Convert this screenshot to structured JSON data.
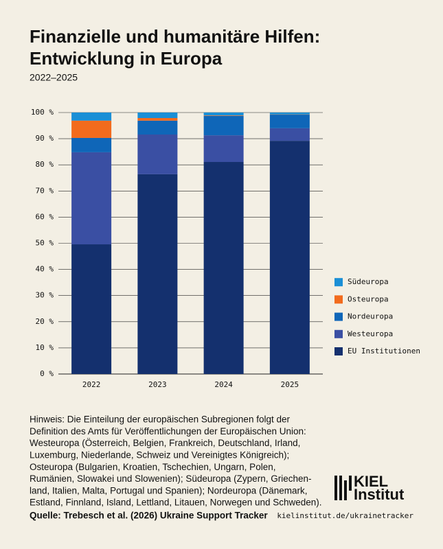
{
  "chart_data": {
    "type": "stacked_bar",
    "title": [
      "Finanzielle und humanitäre Hilfen:",
      "Entwicklung in Europa"
    ],
    "subtitle": "2022–2025",
    "categories": [
      "2022",
      "2023",
      "2024",
      "2025"
    ],
    "series": [
      {
        "name": "EU Institutionen",
        "color": "#14306e",
        "values": [
          49.6,
          76.4,
          81.1,
          89.2
        ]
      },
      {
        "name": "Westeuropa",
        "color": "#3a4fa3",
        "values": [
          35.2,
          15.2,
          10.2,
          4.8
        ]
      },
      {
        "name": "Nordeuropa",
        "color": "#0f66b8",
        "values": [
          5.5,
          5.3,
          7.4,
          5.2
        ]
      },
      {
        "name": "Osteuropa",
        "color": "#f26b1d",
        "values": [
          6.6,
          1.0,
          0.2,
          0.1
        ]
      },
      {
        "name": "Südeuropa",
        "color": "#1a8fd6",
        "values": [
          3.1,
          2.1,
          1.1,
          0.7
        ]
      }
    ],
    "ylim": [
      0,
      100
    ],
    "yticks": [
      {
        "value": 0,
        "label": "0 %"
      },
      {
        "value": 10,
        "label": "10 %"
      },
      {
        "value": 20,
        "label": "20 %"
      },
      {
        "value": 30,
        "label": "30 %"
      },
      {
        "value": 40,
        "label": "40 %"
      },
      {
        "value": 50,
        "label": "50 %"
      },
      {
        "value": 60,
        "label": "60 %"
      },
      {
        "value": 70,
        "label": "70 %"
      },
      {
        "value": 80,
        "label": "80 %"
      },
      {
        "value": 90,
        "label": "90 %"
      },
      {
        "value": 100,
        "label": "100 %"
      }
    ],
    "grid": true,
    "legend": "right",
    "note": [
      "Hinweis: Die Einteilung der europäischen Subregionen folgt der",
      "Definition des Amts für Veröffentlichungen der Europäischen Union:",
      "Westeuropa (Österreich, Belgien, Frankreich, Deutschland, Irland,",
      "Luxemburg, Niederlande, Schweiz und Vereinigtes Königreich);",
      "Osteuropa (Bulgarien, Kroatien, Tschechien, Ungarn, Polen,",
      "Rumänien, Slowakei und Slowenien); Südeuropa (Zypern, Griechen-",
      "land, Italien, Malta, Portugal und Spanien); Nordeuropa (Dänemark,",
      "Estland, Finnland, Island, Lettland, Litauen, Norwegen und Schweden)."
    ],
    "source": "Quelle: Trebesch et al. (2026) Ukraine Support Tracker",
    "url": "kielinstitut.de/ukrainetracker",
    "logo": [
      "KIEL",
      "Institut"
    ]
  }
}
